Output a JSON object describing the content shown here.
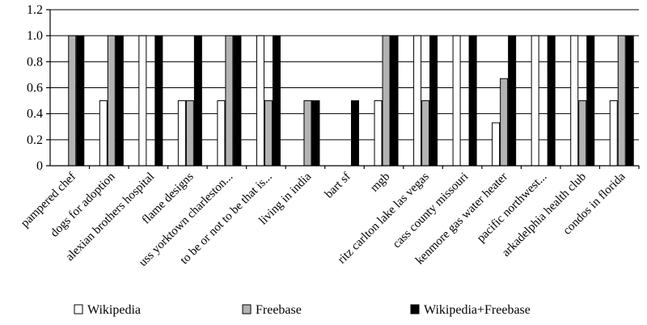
{
  "chart_data": {
    "type": "bar",
    "categories": [
      "pampered chef",
      "dogs for adoption",
      "alexian brothers hospital",
      "flame designs",
      "uss yorktown charleston...",
      "to be or not to be that is...",
      "living in india",
      "bart sf",
      "mgb",
      "ritz carlton lake las vegas",
      "cass county missouri",
      "kenmore gas water heater",
      "pacific northwest...",
      "arkadelphia health club",
      "condos in florida"
    ],
    "series": [
      {
        "name": "Wikipedia",
        "color": "#ffffff",
        "values": [
          0,
          0.5,
          1.0,
          0.5,
          0.5,
          1.0,
          0,
          0,
          0.5,
          1.0,
          1.0,
          0.33,
          1.0,
          1.0,
          0.5
        ]
      },
      {
        "name": "Freebase",
        "color": "#b3b3b3",
        "values": [
          1.0,
          1.0,
          0,
          0.5,
          1.0,
          0.5,
          0.5,
          0,
          1.0,
          0.5,
          0,
          0.67,
          0,
          0.5,
          1.0
        ]
      },
      {
        "name": "Wikipedia+Freebase",
        "color": "#000000",
        "values": [
          1.0,
          1.0,
          1.0,
          1.0,
          1.0,
          1.0,
          0.5,
          0.5,
          1.0,
          1.0,
          1.0,
          1.0,
          1.0,
          1.0,
          1.0
        ]
      }
    ],
    "yticks": [
      "0",
      "0.2",
      "0.4",
      "0.6",
      "0.8",
      "1.0",
      "1.2"
    ],
    "ylim": [
      0,
      1.2
    ],
    "grid": true,
    "legend_position": "bottom"
  }
}
